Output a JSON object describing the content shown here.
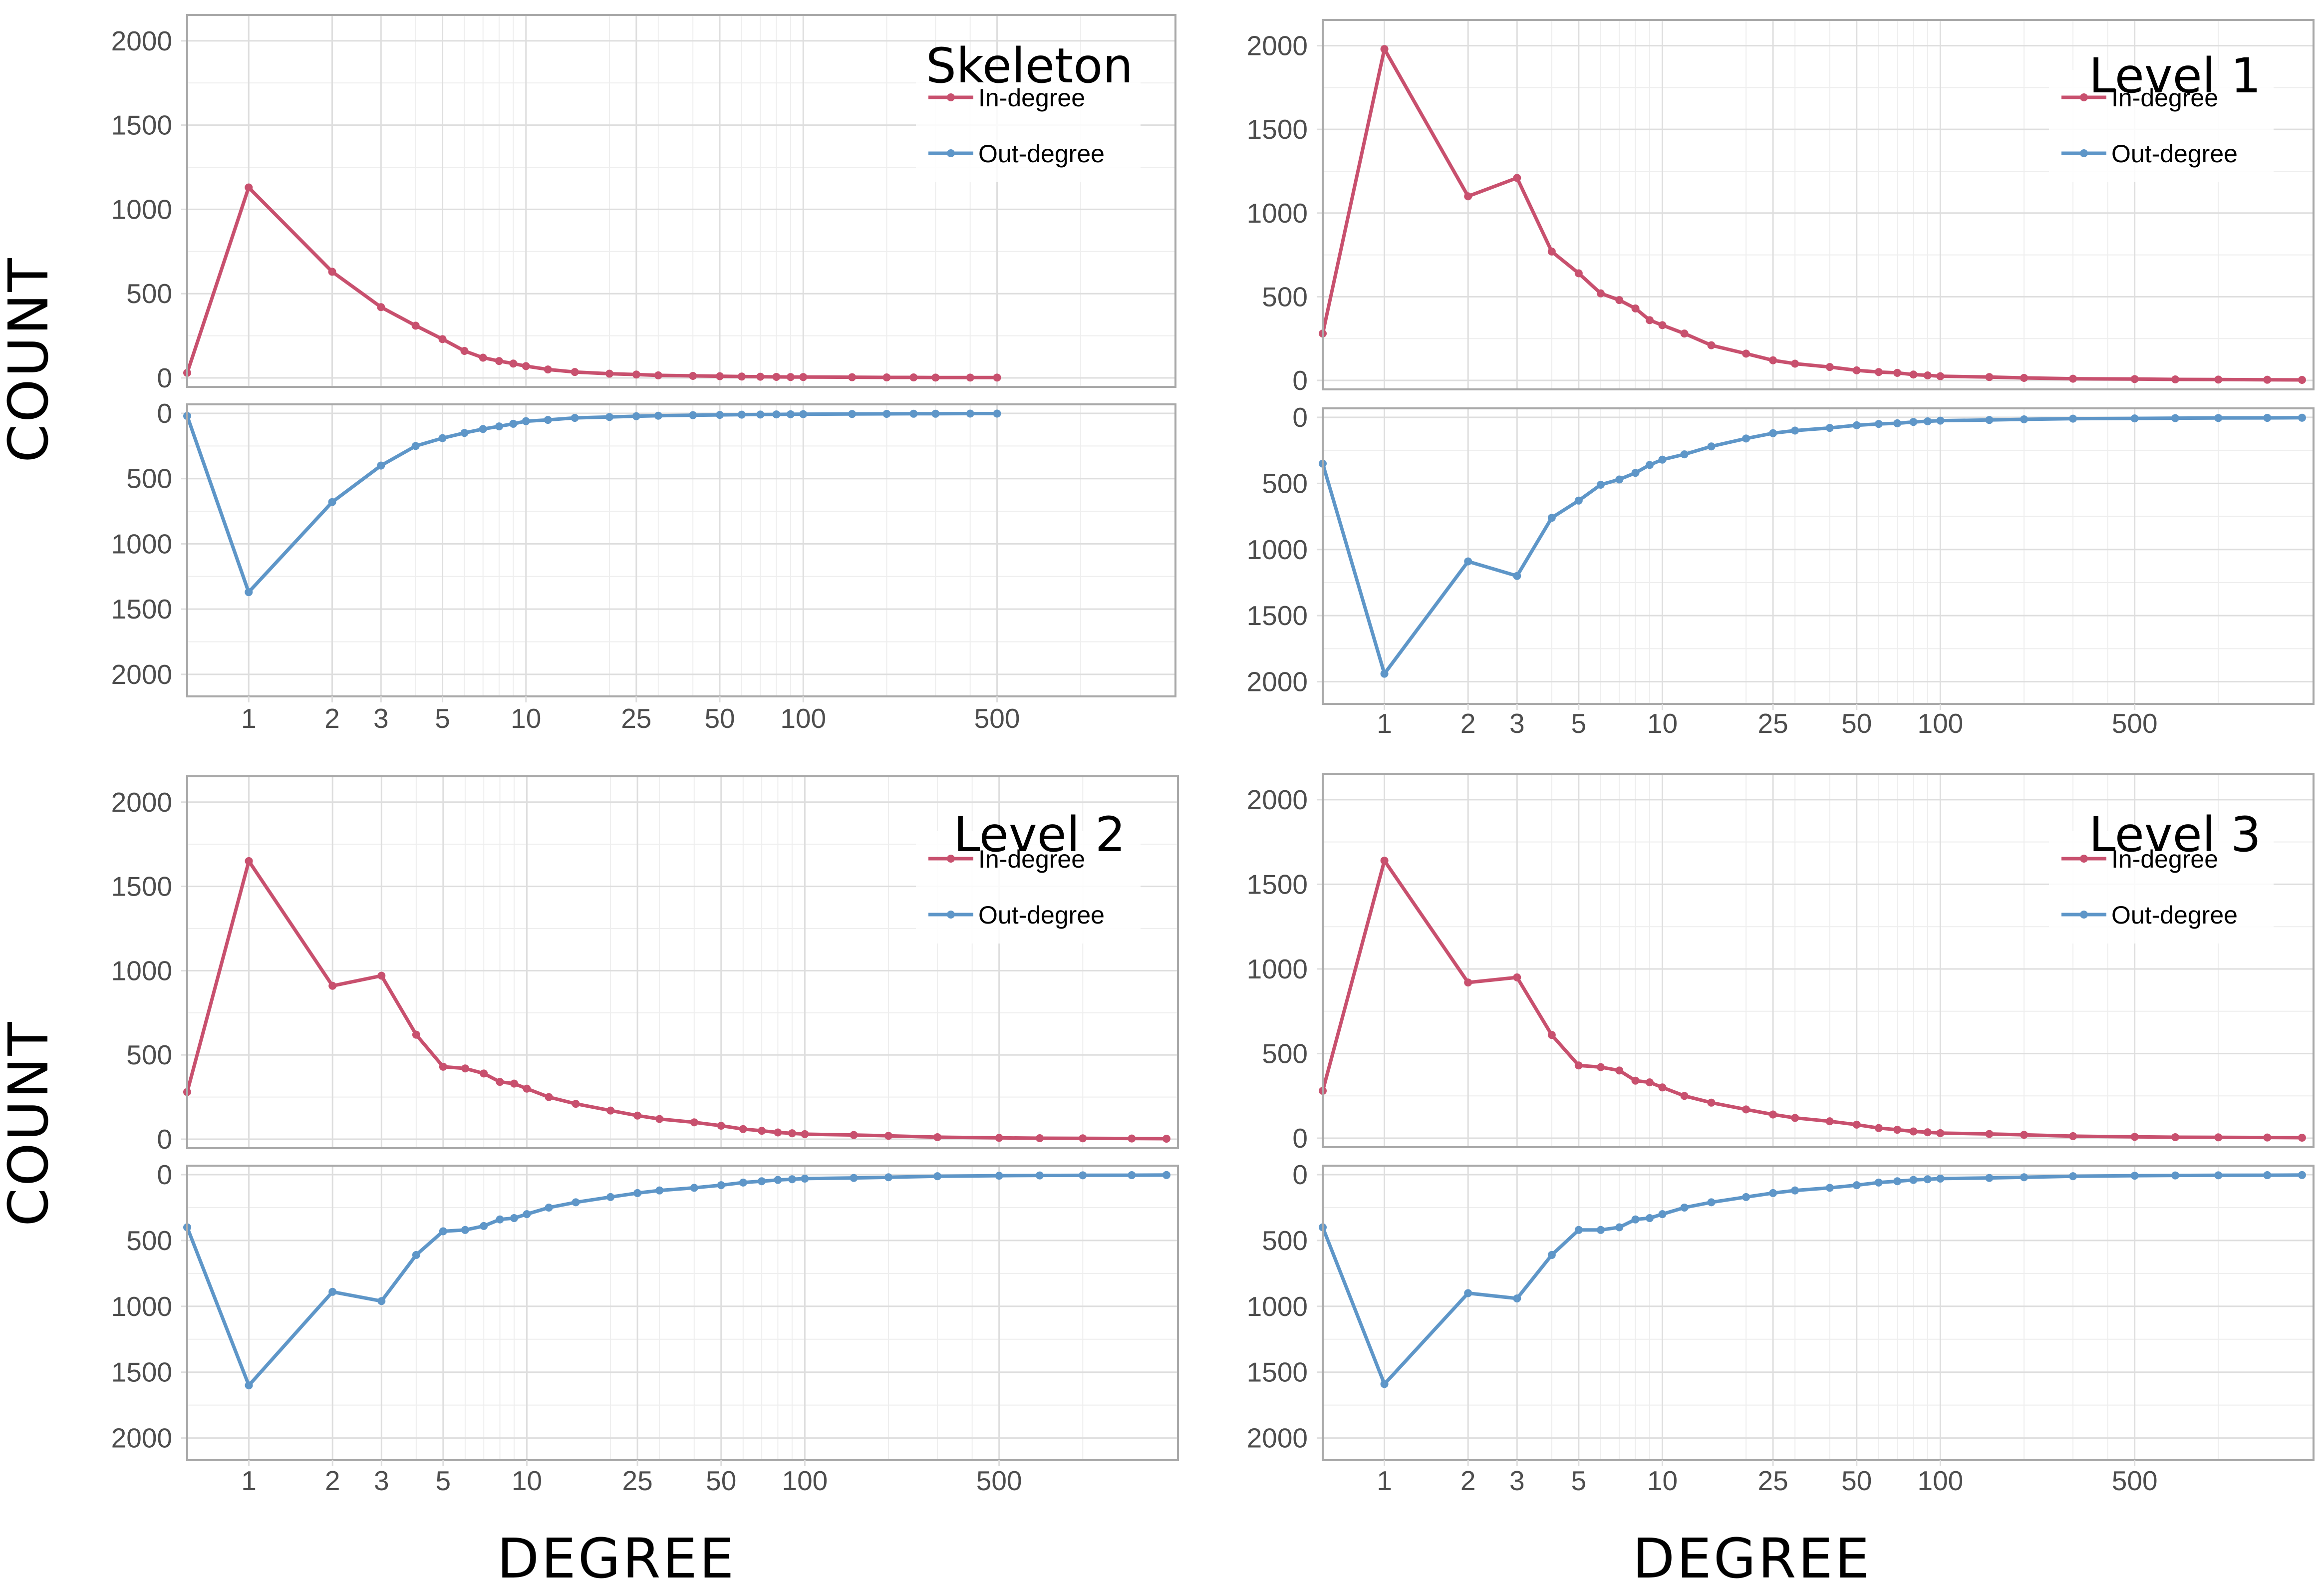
{
  "colors": {
    "in_degree": "#c8506e",
    "out_degree": "#5e96c8",
    "grid_major": "#dedede",
    "grid_minor": "#eeeeee",
    "panel_border": "#a9a9a9",
    "tick_text": "#4d4d4d"
  },
  "axes": {
    "ylabel": "COUNT",
    "xlabel": "DEGREE",
    "x_scale": "log",
    "y_ticks": [
      0,
      500,
      1000,
      1500,
      2000
    ],
    "x_tick_labels": [
      "1",
      "2",
      "3",
      "5",
      "10",
      "25",
      "50",
      "100",
      "500"
    ],
    "x_ticks": [
      1,
      2,
      3,
      5,
      10,
      25,
      50,
      100,
      500
    ],
    "x_minor_ticks": [
      4,
      6,
      7,
      8,
      9,
      20,
      30,
      40,
      60,
      70,
      80,
      90,
      200,
      300,
      400,
      1000
    ],
    "xlim": [
      0.6,
      2200
    ],
    "ylim": [
      0,
      2100
    ],
    "top_half_direction": "up",
    "bottom_half_direction": "down",
    "legend_position": "top-right",
    "grid": true
  },
  "legend": {
    "in_degree": "In-degree",
    "out_degree": "Out-degree"
  },
  "chart_data": [
    {
      "type": "line",
      "title": "Skeleton",
      "xmax": 500,
      "series": [
        {
          "name": "In-degree",
          "x": [
            0.6,
            1,
            2,
            3,
            4,
            5,
            6,
            7,
            8,
            9,
            10,
            12,
            15,
            20,
            25,
            30,
            40,
            50,
            60,
            70,
            80,
            90,
            100,
            150,
            200,
            250,
            300,
            400,
            500
          ],
          "y": [
            30,
            1130,
            630,
            420,
            310,
            230,
            160,
            120,
            100,
            85,
            70,
            50,
            35,
            25,
            20,
            15,
            12,
            10,
            8,
            7,
            6,
            5,
            5,
            4,
            3,
            3,
            2,
            2,
            2
          ]
        },
        {
          "name": "Out-degree",
          "x": [
            0.6,
            1,
            2,
            3,
            4,
            5,
            6,
            7,
            8,
            9,
            10,
            12,
            15,
            20,
            25,
            30,
            40,
            50,
            60,
            70,
            80,
            90,
            100,
            150,
            200,
            250,
            300,
            400,
            500
          ],
          "y": [
            20,
            1370,
            680,
            400,
            250,
            190,
            150,
            120,
            100,
            80,
            60,
            50,
            35,
            28,
            22,
            18,
            14,
            12,
            10,
            9,
            8,
            7,
            6,
            5,
            4,
            3,
            3,
            2,
            2
          ]
        }
      ]
    },
    {
      "type": "line",
      "title": "Level 1",
      "xmax": 2000,
      "series": [
        {
          "name": "In-degree",
          "x": [
            0.6,
            1,
            2,
            3,
            4,
            5,
            6,
            7,
            8,
            9,
            10,
            12,
            15,
            20,
            25,
            30,
            40,
            50,
            60,
            70,
            80,
            90,
            100,
            150,
            200,
            300,
            500,
            700,
            1000,
            1500,
            2000
          ],
          "y": [
            280,
            1980,
            1100,
            1210,
            770,
            640,
            520,
            480,
            430,
            360,
            330,
            280,
            210,
            160,
            120,
            100,
            80,
            60,
            50,
            45,
            35,
            30,
            25,
            20,
            15,
            10,
            8,
            6,
            5,
            4,
            3
          ]
        },
        {
          "name": "Out-degree",
          "x": [
            0.6,
            1,
            2,
            3,
            4,
            5,
            6,
            7,
            8,
            9,
            10,
            12,
            15,
            20,
            25,
            30,
            40,
            50,
            60,
            70,
            80,
            90,
            100,
            150,
            200,
            300,
            500,
            700,
            1000,
            1500,
            2000
          ],
          "y": [
            350,
            1940,
            1090,
            1200,
            760,
            630,
            510,
            470,
            420,
            360,
            320,
            280,
            220,
            160,
            120,
            100,
            80,
            60,
            50,
            45,
            35,
            30,
            25,
            20,
            15,
            10,
            8,
            6,
            5,
            4,
            3
          ]
        }
      ]
    },
    {
      "type": "line",
      "title": "Level 2",
      "xmax": 2000,
      "series": [
        {
          "name": "In-degree",
          "x": [
            0.6,
            1,
            2,
            3,
            4,
            5,
            6,
            7,
            8,
            9,
            10,
            12,
            15,
            20,
            25,
            30,
            40,
            50,
            60,
            70,
            80,
            90,
            100,
            150,
            200,
            300,
            500,
            700,
            1000,
            1500,
            2000
          ],
          "y": [
            280,
            1650,
            910,
            970,
            620,
            430,
            420,
            390,
            340,
            330,
            300,
            250,
            210,
            170,
            140,
            120,
            100,
            80,
            60,
            50,
            40,
            35,
            30,
            25,
            20,
            12,
            8,
            6,
            5,
            4,
            3
          ]
        },
        {
          "name": "Out-degree",
          "x": [
            0.6,
            1,
            2,
            3,
            4,
            5,
            6,
            7,
            8,
            9,
            10,
            12,
            15,
            20,
            25,
            30,
            40,
            50,
            60,
            70,
            80,
            90,
            100,
            150,
            200,
            300,
            500,
            700,
            1000,
            1500,
            2000
          ],
          "y": [
            400,
            1600,
            890,
            960,
            610,
            430,
            420,
            390,
            340,
            330,
            300,
            250,
            210,
            170,
            140,
            120,
            100,
            80,
            60,
            50,
            40,
            35,
            30,
            25,
            20,
            12,
            8,
            6,
            5,
            4,
            3
          ]
        }
      ]
    },
    {
      "type": "line",
      "title": "Level 3",
      "xmax": 2000,
      "series": [
        {
          "name": "In-degree",
          "x": [
            0.6,
            1,
            2,
            3,
            4,
            5,
            6,
            7,
            8,
            9,
            10,
            12,
            15,
            20,
            25,
            30,
            40,
            50,
            60,
            70,
            80,
            90,
            100,
            150,
            200,
            300,
            500,
            700,
            1000,
            1500,
            2000
          ],
          "y": [
            280,
            1640,
            920,
            950,
            610,
            430,
            420,
            400,
            340,
            330,
            300,
            250,
            210,
            170,
            140,
            120,
            100,
            80,
            60,
            50,
            40,
            35,
            30,
            25,
            20,
            12,
            8,
            6,
            5,
            4,
            3
          ]
        },
        {
          "name": "Out-degree",
          "x": [
            0.6,
            1,
            2,
            3,
            4,
            5,
            6,
            7,
            8,
            9,
            10,
            12,
            15,
            20,
            25,
            30,
            40,
            50,
            60,
            70,
            80,
            90,
            100,
            150,
            200,
            300,
            500,
            700,
            1000,
            1500,
            2000
          ],
          "y": [
            400,
            1590,
            900,
            940,
            610,
            420,
            420,
            400,
            340,
            330,
            300,
            250,
            210,
            170,
            140,
            120,
            100,
            80,
            60,
            50,
            40,
            35,
            30,
            25,
            20,
            12,
            8,
            6,
            5,
            4,
            3
          ]
        }
      ]
    }
  ]
}
